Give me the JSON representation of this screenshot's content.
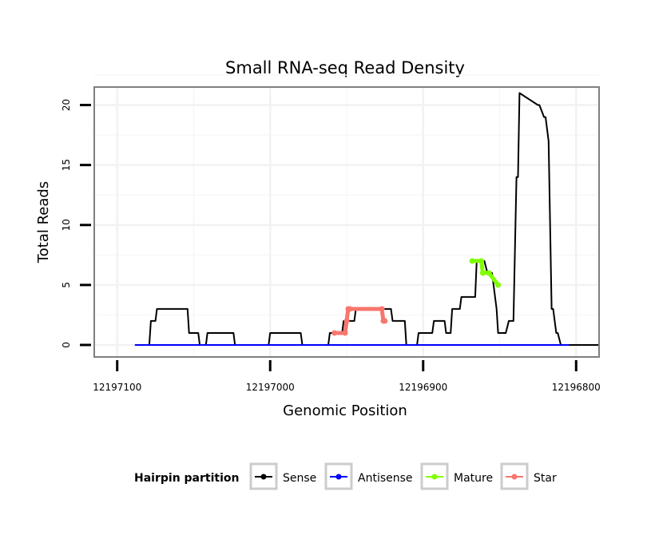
{
  "chart_data": {
    "type": "line",
    "title": "Small RNA-seq Read Density",
    "xlabel": "Genomic Position",
    "ylabel": "Total Reads",
    "xlim": [
      12197115,
      12196785
    ],
    "ylim": [
      -1,
      21.5
    ],
    "x_reversed": true,
    "grid": true,
    "x_ticks": [
      12197100,
      12197000,
      12196900,
      12196800
    ],
    "x_tick_labels": [
      "12197100",
      "12197000",
      "12196900",
      "12196800"
    ],
    "y_ticks": [
      0,
      5,
      10,
      15,
      20
    ],
    "y_tick_labels": [
      "0",
      "5",
      "10",
      "15",
      "20"
    ],
    "legend": {
      "title": "Hairpin partition",
      "position": "bottom",
      "entries": [
        "Sense",
        "Antisense",
        "Mature",
        "Star"
      ]
    },
    "series": [
      {
        "name": "Sense",
        "color": "#000000",
        "x": [
          12197088,
          12197079,
          12197078,
          12197075,
          12197074,
          12197054,
          12197053,
          12197047,
          12197046,
          12197042,
          12197041,
          12197024,
          12197023,
          12197001,
          12197000,
          12196980,
          12196979,
          12196962,
          12196961,
          12196953,
          12196952,
          12196945,
          12196944,
          12196921,
          12196920,
          12196912,
          12196911,
          12196904,
          12196903,
          12196894,
          12196893,
          12196886,
          12196885,
          12196882,
          12196881,
          12196876,
          12196875,
          12196866,
          12196865,
          12196860,
          12196858,
          12196855,
          12196854,
          12196852,
          12196851,
          12196846,
          12196844,
          12196841,
          12196839,
          12196838,
          12196837,
          12196825,
          12196824,
          12196821,
          12196820,
          12196818,
          12196816,
          12196815,
          12196813,
          12196812,
          12196810,
          12196805,
          12196785
        ],
        "y": [
          0,
          0,
          2,
          2,
          3,
          3,
          1,
          1,
          0,
          0,
          1,
          1,
          0,
          0,
          1,
          1,
          0,
          0,
          1,
          1,
          2,
          2,
          3,
          3,
          2,
          2,
          0,
          0,
          1,
          1,
          2,
          2,
          1,
          1,
          3,
          3,
          4,
          4,
          7,
          7,
          6,
          6,
          5,
          3,
          1,
          1,
          2,
          2,
          14,
          14,
          21,
          20,
          20,
          19,
          19,
          17,
          3,
          3,
          1,
          1,
          0,
          0,
          0
        ]
      },
      {
        "name": "Antisense",
        "color": "#0000ff",
        "x": [
          12197088,
          12196805
        ],
        "y": [
          0,
          0
        ]
      },
      {
        "name": "Mature",
        "color": "#7fff00",
        "x": [
          12196868,
          12196862,
          12196861,
          12196857,
          12196851
        ],
        "y": [
          7,
          7,
          6,
          6,
          5
        ]
      },
      {
        "name": "Star",
        "color": "#f8766d",
        "x": [
          12196958,
          12196951,
          12196950,
          12196949,
          12196948,
          12196927,
          12196926,
          12196925
        ],
        "y": [
          1,
          1,
          2,
          3,
          3,
          3,
          2,
          2
        ]
      }
    ]
  }
}
